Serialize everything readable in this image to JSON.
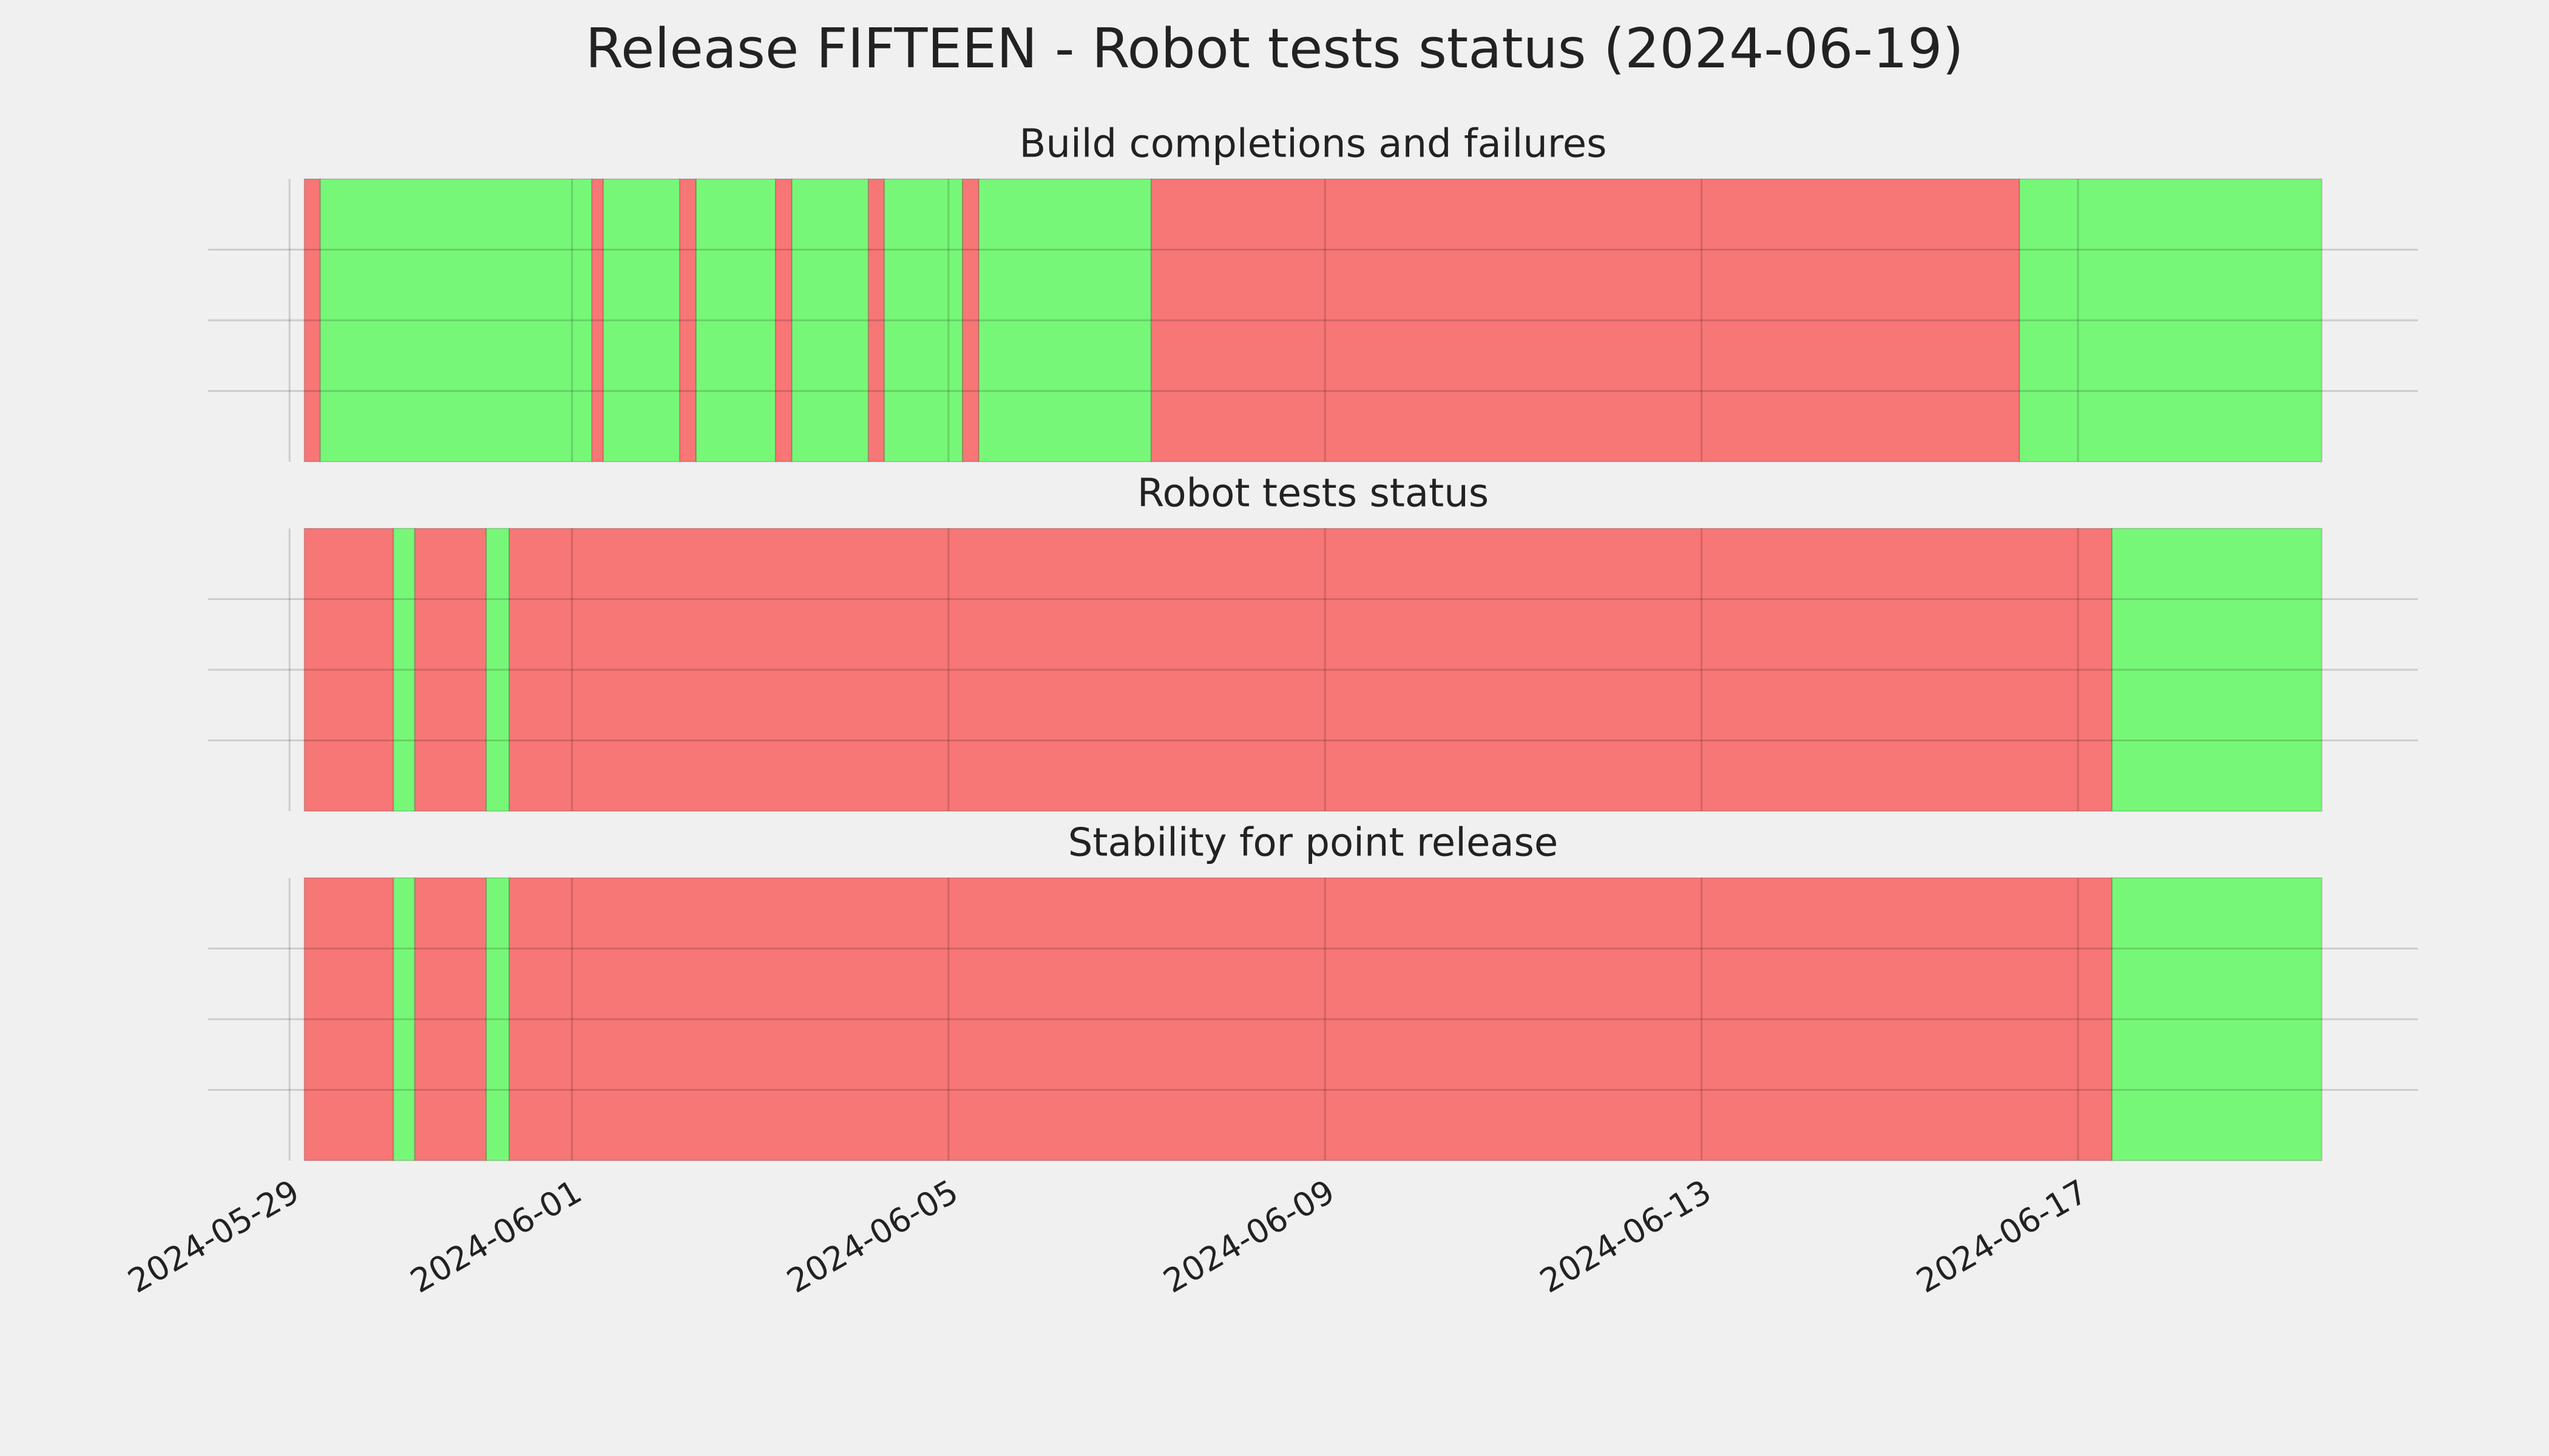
{
  "chart_data": {
    "type": "timeline",
    "title": "Release FIFTEEN - Robot tests status (2024-06-19)",
    "xlim": [
      "2024-05-28T03:15",
      "2024-06-20T14:40"
    ],
    "xticks": [
      "2024-05-29",
      "2024-06-01",
      "2024-06-05",
      "2024-06-09",
      "2024-06-13",
      "2024-06-17"
    ],
    "ylim": [
      0,
      1
    ],
    "yticks": [
      0.25,
      0.5,
      0.75
    ],
    "grid": true,
    "panels": [
      {
        "title": "Build completions and failures",
        "x": [
          "2024-05-29T03:45",
          "2024-05-29T07:50",
          "2024-06-01T05:05",
          "2024-06-01T08:00",
          "2024-06-02T03:30",
          "2024-06-02T07:40",
          "2024-06-03T03:55",
          "2024-06-03T08:05",
          "2024-06-04T03:35",
          "2024-06-04T07:40",
          "2024-06-05T03:35",
          "2024-06-05T07:45",
          "2024-06-07T03:40",
          "2024-06-16T09:05",
          "2024-06-19T14:10"
        ],
        "colors": [
          "#f77676",
          "#77f777",
          "#f77676",
          "#77f777",
          "#f77676",
          "#77f777",
          "#f77676",
          "#77f777",
          "#f77676",
          "#77f777",
          "#f77676",
          "#77f777",
          "#f77676",
          "#77f777"
        ]
      },
      {
        "title": "Robot tests status",
        "x": [
          "2024-05-29T03:45",
          "2024-05-30T02:30",
          "2024-05-30T07:55",
          "2024-05-31T02:10",
          "2024-05-31T08:00",
          "2024-06-17T08:40",
          "2024-06-19T14:10"
        ],
        "colors": [
          "#f77676",
          "#77f777",
          "#f77676",
          "#77f777",
          "#f77676",
          "#77f777"
        ]
      },
      {
        "title": "Stability for point release",
        "x": [
          "2024-05-29T03:45",
          "2024-05-30T02:30",
          "2024-05-30T07:55",
          "2024-05-31T02:10",
          "2024-05-31T08:00",
          "2024-06-17T08:40",
          "2024-06-19T14:10"
        ],
        "colors": [
          "#f77676",
          "#77f777",
          "#f77676",
          "#77f777",
          "#f77676",
          "#77f777"
        ]
      }
    ]
  }
}
